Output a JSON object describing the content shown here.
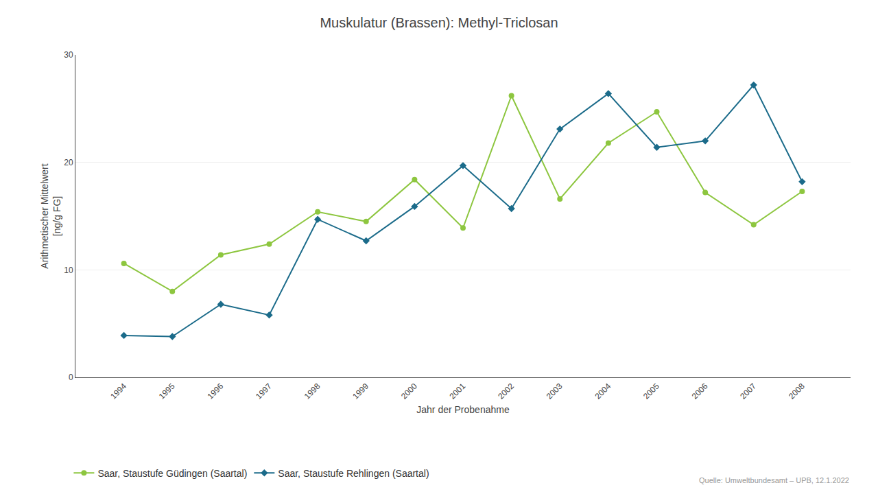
{
  "chart_data": {
    "type": "line",
    "title": "Muskulatur (Brassen): Methyl-Triclosan",
    "x_label": "Jahr der Probenahme",
    "y_label": "Arithmetischer Mittelwert\n[ng/g FG]",
    "annotations": [
      "Quelle: Umweltbundesamt – UPB, 12.1.2022"
    ],
    "x": [
      1994,
      1995,
      1996,
      1997,
      1998,
      1999,
      2000,
      2001,
      2002,
      2003,
      2004,
      2005,
      2006,
      2007,
      2008
    ],
    "series": [
      {
        "name": "Saar, Staustufe Güdingen (Saartal)",
        "color": "#8dc63f",
        "marker": "circle",
        "values": [
          10.6,
          8.0,
          11.4,
          12.4,
          15.4,
          14.5,
          18.4,
          13.9,
          26.2,
          16.6,
          21.8,
          24.7,
          17.2,
          14.2,
          17.3
        ]
      },
      {
        "name": "Saar, Staustufe Rehlingen (Saartal)",
        "color": "#1b6b8a",
        "marker": "diamond",
        "values": [
          3.9,
          3.8,
          6.8,
          5.8,
          14.7,
          12.7,
          15.9,
          19.7,
          15.7,
          23.1,
          26.4,
          21.4,
          22.0,
          27.2,
          18.2
        ]
      }
    ],
    "xlim": [
      1993,
      2009
    ],
    "xticks": [
      1994,
      1995,
      1996,
      1997,
      1998,
      1999,
      2000,
      2001,
      2002,
      2003,
      2004,
      2005,
      2006,
      2007,
      2008
    ],
    "ylim": [
      0,
      30
    ],
    "yticks": [
      0,
      10,
      20,
      30
    ],
    "grid": "y",
    "legend": "lower left"
  }
}
